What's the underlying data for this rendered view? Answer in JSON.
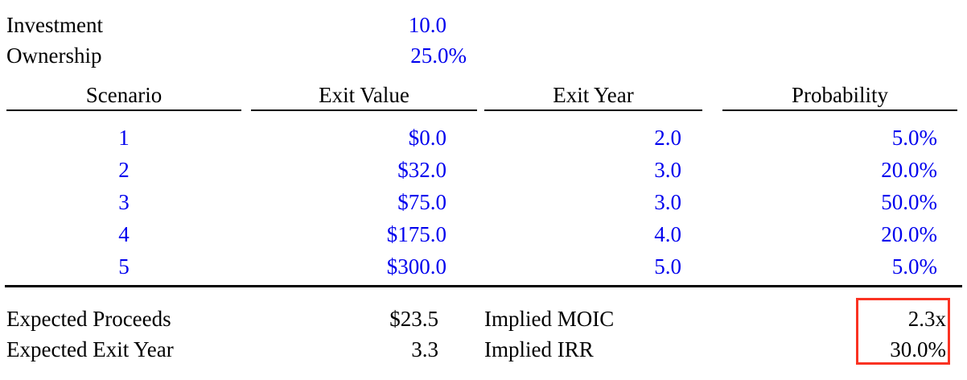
{
  "colors": {
    "input_text_blue": "#0000EE",
    "label_text_black": "#000000",
    "highlight_box_red": "#FA3222",
    "rule_black": "#000000",
    "background": "#FFFFFF"
  },
  "inputs": {
    "rows": [
      {
        "label": "Investment",
        "value": "10.0"
      },
      {
        "label": "Ownership",
        "value": "25.0%"
      }
    ]
  },
  "scenario_table": {
    "headers": [
      "Scenario",
      "Exit Value",
      "Exit Year",
      "Probability"
    ],
    "rows": [
      {
        "scenario": "1",
        "exit_value": "$0.0",
        "exit_year": "2.0",
        "probability": "5.0%"
      },
      {
        "scenario": "2",
        "exit_value": "$32.0",
        "exit_year": "3.0",
        "probability": "20.0%"
      },
      {
        "scenario": "3",
        "exit_value": "$75.0",
        "exit_year": "3.0",
        "probability": "50.0%"
      },
      {
        "scenario": "4",
        "exit_value": "$175.0",
        "exit_year": "4.0",
        "probability": "20.0%"
      },
      {
        "scenario": "5",
        "exit_value": "$300.0",
        "exit_year": "5.0",
        "probability": "5.0%"
      }
    ]
  },
  "summary": {
    "left": [
      {
        "label": "Expected Proceeds",
        "value": "$23.5"
      },
      {
        "label": "Expected Exit Year",
        "value": "3.3"
      }
    ],
    "right": [
      {
        "label": "Implied MOIC",
        "value": "2.3x"
      },
      {
        "label": "Implied IRR",
        "value": "30.0%"
      }
    ]
  }
}
